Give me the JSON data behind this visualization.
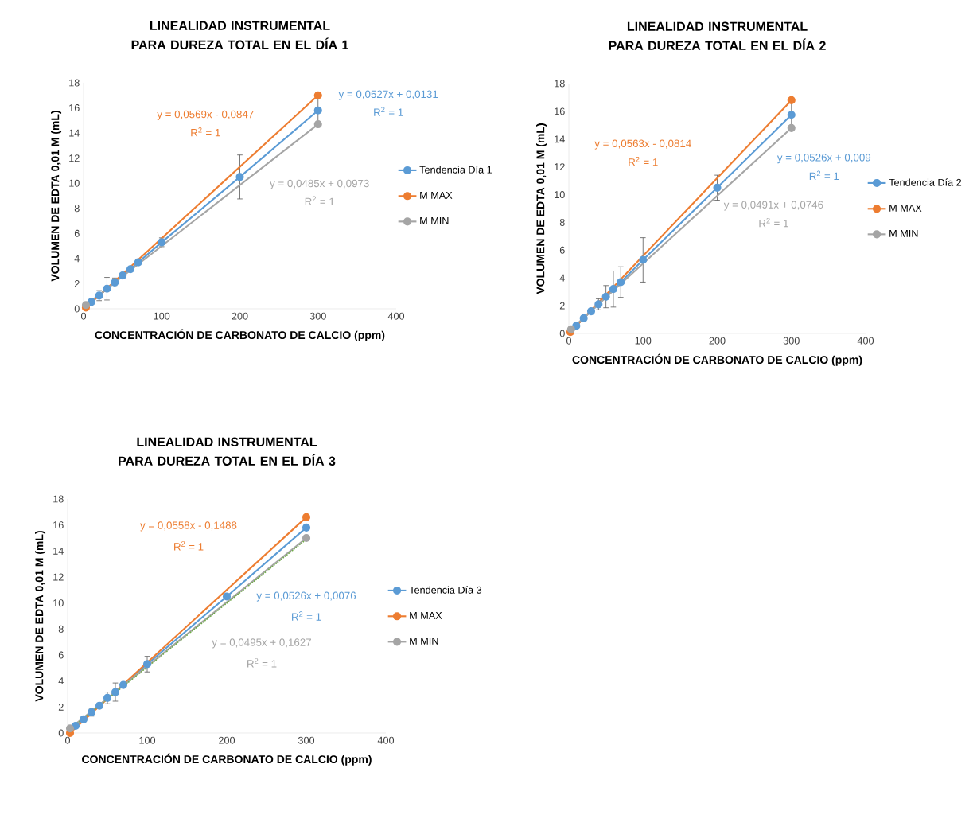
{
  "chart_data": [
    {
      "type": "line",
      "title": "LINEALIDAD INSTRUMENTAL PARA DUREZA TOTAL EN EL DÍA 1",
      "xlabel": "CONCENTRACIÓN DE CARBONATO DE CALCIO (ppm)",
      "ylabel": "VOLUMEN DE EDTA 0,01 M (mL)",
      "xlim": [
        0,
        400
      ],
      "ylim": [
        0,
        18
      ],
      "xticks": [
        0,
        100,
        200,
        300,
        400
      ],
      "yticks": [
        0,
        2,
        4,
        6,
        8,
        10,
        12,
        14,
        16,
        18
      ],
      "legend": "right",
      "marker": "circle",
      "series": [
        {
          "name": "Tendencia Día 1",
          "color": "#5b9bd5",
          "x": [
            10,
            20,
            30,
            40,
            50,
            60,
            70,
            100,
            200,
            300
          ],
          "values": [
            0.55,
            1.05,
            1.6,
            2.1,
            2.65,
            3.15,
            3.7,
            5.3,
            10.5,
            15.8
          ],
          "errors": [
            null,
            0.4,
            0.9,
            0.35,
            null,
            null,
            null,
            0.35,
            1.75,
            1.2
          ]
        },
        {
          "name": "M MAX",
          "color": "#ed7d31",
          "x": [
            3,
            300
          ],
          "values": [
            0.1,
            17.0
          ]
        },
        {
          "name": "M MIN",
          "color": "#a5a5a5",
          "x": [
            3,
            300
          ],
          "values": [
            0.3,
            14.7
          ]
        }
      ],
      "annotations": [
        "y = 0,0527x + 0,0131",
        "R$^{2}$ = 1",
        "y = 0,0569x - 0,0847",
        "R$^{2}$ = 1",
        "y = 0,0485x + 0,0973",
        "R$^{2}$ = 1"
      ]
    },
    {
      "type": "line",
      "title": "LINEALIDAD INSTRUMENTAL PARA DUREZA TOTAL EN EL DÍA 2",
      "xlabel": "CONCENTRACIÓN DE CARBONATO DE CALCIO (ppm)",
      "ylabel": "VOLUMEN DE EDTA 0,01 M (mL)",
      "xlim": [
        0,
        400
      ],
      "ylim": [
        0,
        18
      ],
      "xticks": [
        0,
        100,
        200,
        300,
        400
      ],
      "yticks": [
        0,
        2,
        4,
        6,
        8,
        10,
        12,
        14,
        16,
        18
      ],
      "legend": "right",
      "marker": "circle",
      "series": [
        {
          "name": "Tendencia Día 2",
          "color": "#5b9bd5",
          "x": [
            10,
            20,
            30,
            40,
            50,
            60,
            70,
            100,
            200,
            300
          ],
          "values": [
            0.55,
            1.1,
            1.6,
            2.1,
            2.65,
            3.2,
            3.7,
            5.3,
            10.5,
            15.75
          ],
          "errors": [
            null,
            null,
            null,
            0.4,
            0.8,
            1.3,
            1.1,
            1.6,
            0.9,
            1.0
          ]
        },
        {
          "name": "M MAX",
          "color": "#ed7d31",
          "x": [
            2,
            300
          ],
          "values": [
            0.1,
            16.8
          ]
        },
        {
          "name": "M MIN",
          "color": "#a5a5a5",
          "x": [
            3,
            300
          ],
          "values": [
            0.3,
            14.8
          ]
        }
      ],
      "annotations": [
        "y = 0,0526x + 0,009",
        "R$^{2}$ = 1",
        "y = 0,0563x - 0,0814",
        "R$^{2}$ = 1",
        "y = 0,0491x + 0,0746",
        "R$^{2}$ = 1"
      ]
    },
    {
      "type": "line",
      "title": "LINEALIDAD INSTRUMENTAL PARA DUREZA TOTAL EN EL DÍA 3",
      "xlabel": "CONCENTRACIÓN DE CARBONATO DE CALCIO (ppm)",
      "ylabel": "VOLUMEN DE EDTA 0,01 M (mL)",
      "xlim": [
        0,
        400
      ],
      "ylim": [
        0,
        18
      ],
      "xticks": [
        0,
        100,
        200,
        300,
        400
      ],
      "yticks": [
        0,
        2,
        4,
        6,
        8,
        10,
        12,
        14,
        16,
        18
      ],
      "legend": "right",
      "marker": "circle",
      "series": [
        {
          "name": "Tendencia Día 3",
          "color": "#5b9bd5",
          "x": [
            10,
            20,
            30,
            40,
            50,
            60,
            70,
            100,
            200,
            300
          ],
          "values": [
            0.55,
            1.05,
            1.6,
            2.1,
            2.7,
            3.15,
            3.7,
            5.3,
            10.5,
            15.8
          ],
          "errors": [
            null,
            null,
            0.3,
            null,
            0.45,
            0.7,
            null,
            0.6,
            null,
            null
          ]
        },
        {
          "name": "M MAX",
          "color": "#ed7d31",
          "x": [
            3,
            300
          ],
          "values": [
            0.0,
            16.6
          ]
        },
        {
          "name": "M MIN",
          "color": "#a5a5a5",
          "x": [
            3,
            300
          ],
          "values": [
            0.35,
            15.0
          ]
        },
        {
          "type": "line",
          "color": "#70ad47",
          "marker": "none",
          "line_style": "dotted",
          "x": [
            3,
            300
          ],
          "values": [
            0.3,
            14.9
          ]
        }
      ],
      "annotations": [
        "y = 0,0526x + 0,0076",
        "R$^{2}$ = 1",
        "y = 0,0558x - 0,1488",
        "R$^{2}$ = 1",
        "y = 0,0495x + 0,1627",
        "R$^{2}$ = 1"
      ]
    }
  ]
}
